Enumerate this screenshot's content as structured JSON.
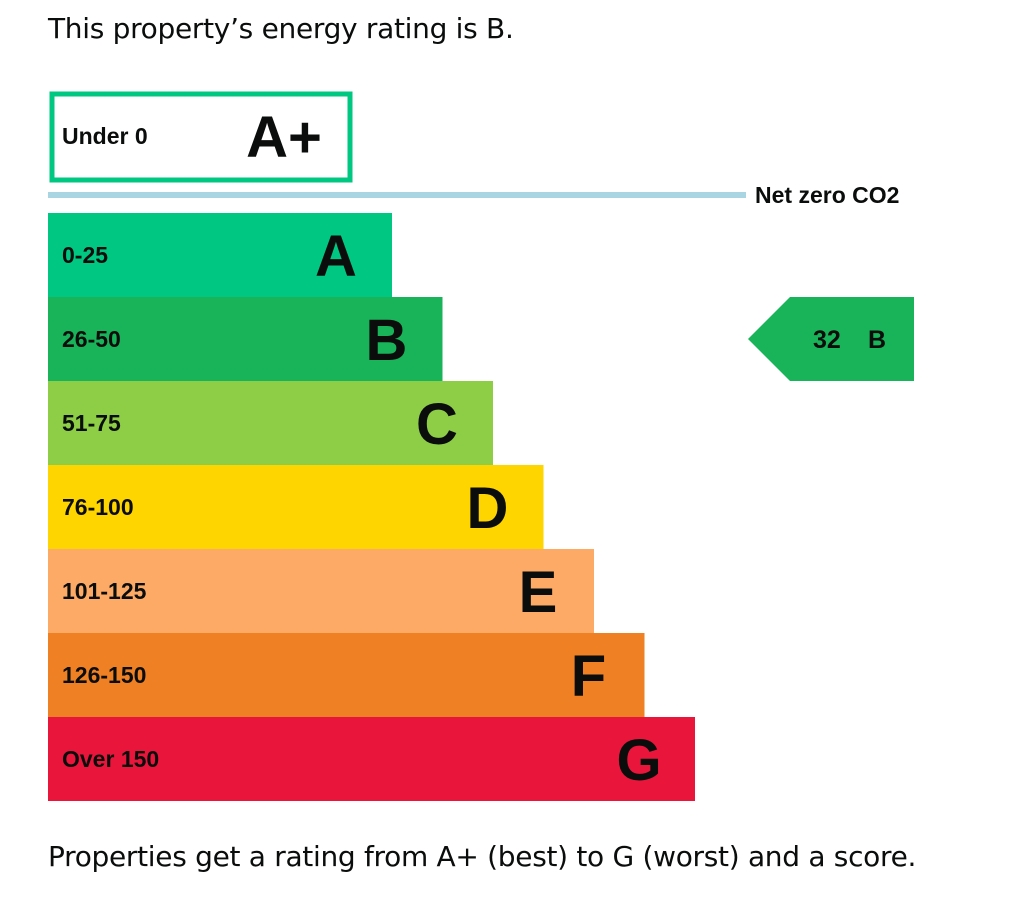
{
  "intro_text": "This property’s energy rating is B.",
  "outro_text": "Properties get a rating from A+ (best) to G (worst) and a score.",
  "chart_data": {
    "type": "bar",
    "title": "",
    "top_band": {
      "range": "Under 0",
      "letter": "A+",
      "color": "#00c781"
    },
    "net_zero_label": "Net zero CO2",
    "net_zero_line_color": "#a9d4e2",
    "bands": [
      {
        "range": "0-25",
        "letter": "A",
        "color": "#00c781"
      },
      {
        "range": "26-50",
        "letter": "B",
        "color": "#19b459"
      },
      {
        "range": "51-75",
        "letter": "C",
        "color": "#8dce46"
      },
      {
        "range": "76-100",
        "letter": "D",
        "color": "#ffd500"
      },
      {
        "range": "101-125",
        "letter": "E",
        "color": "#fcaa65"
      },
      {
        "range": "126-150",
        "letter": "F",
        "color": "#ef8023"
      },
      {
        "range": "Over 150",
        "letter": "G",
        "color": "#e9153b"
      }
    ],
    "current_rating": {
      "score": "32",
      "letter": "B",
      "color": "#19b459"
    }
  }
}
